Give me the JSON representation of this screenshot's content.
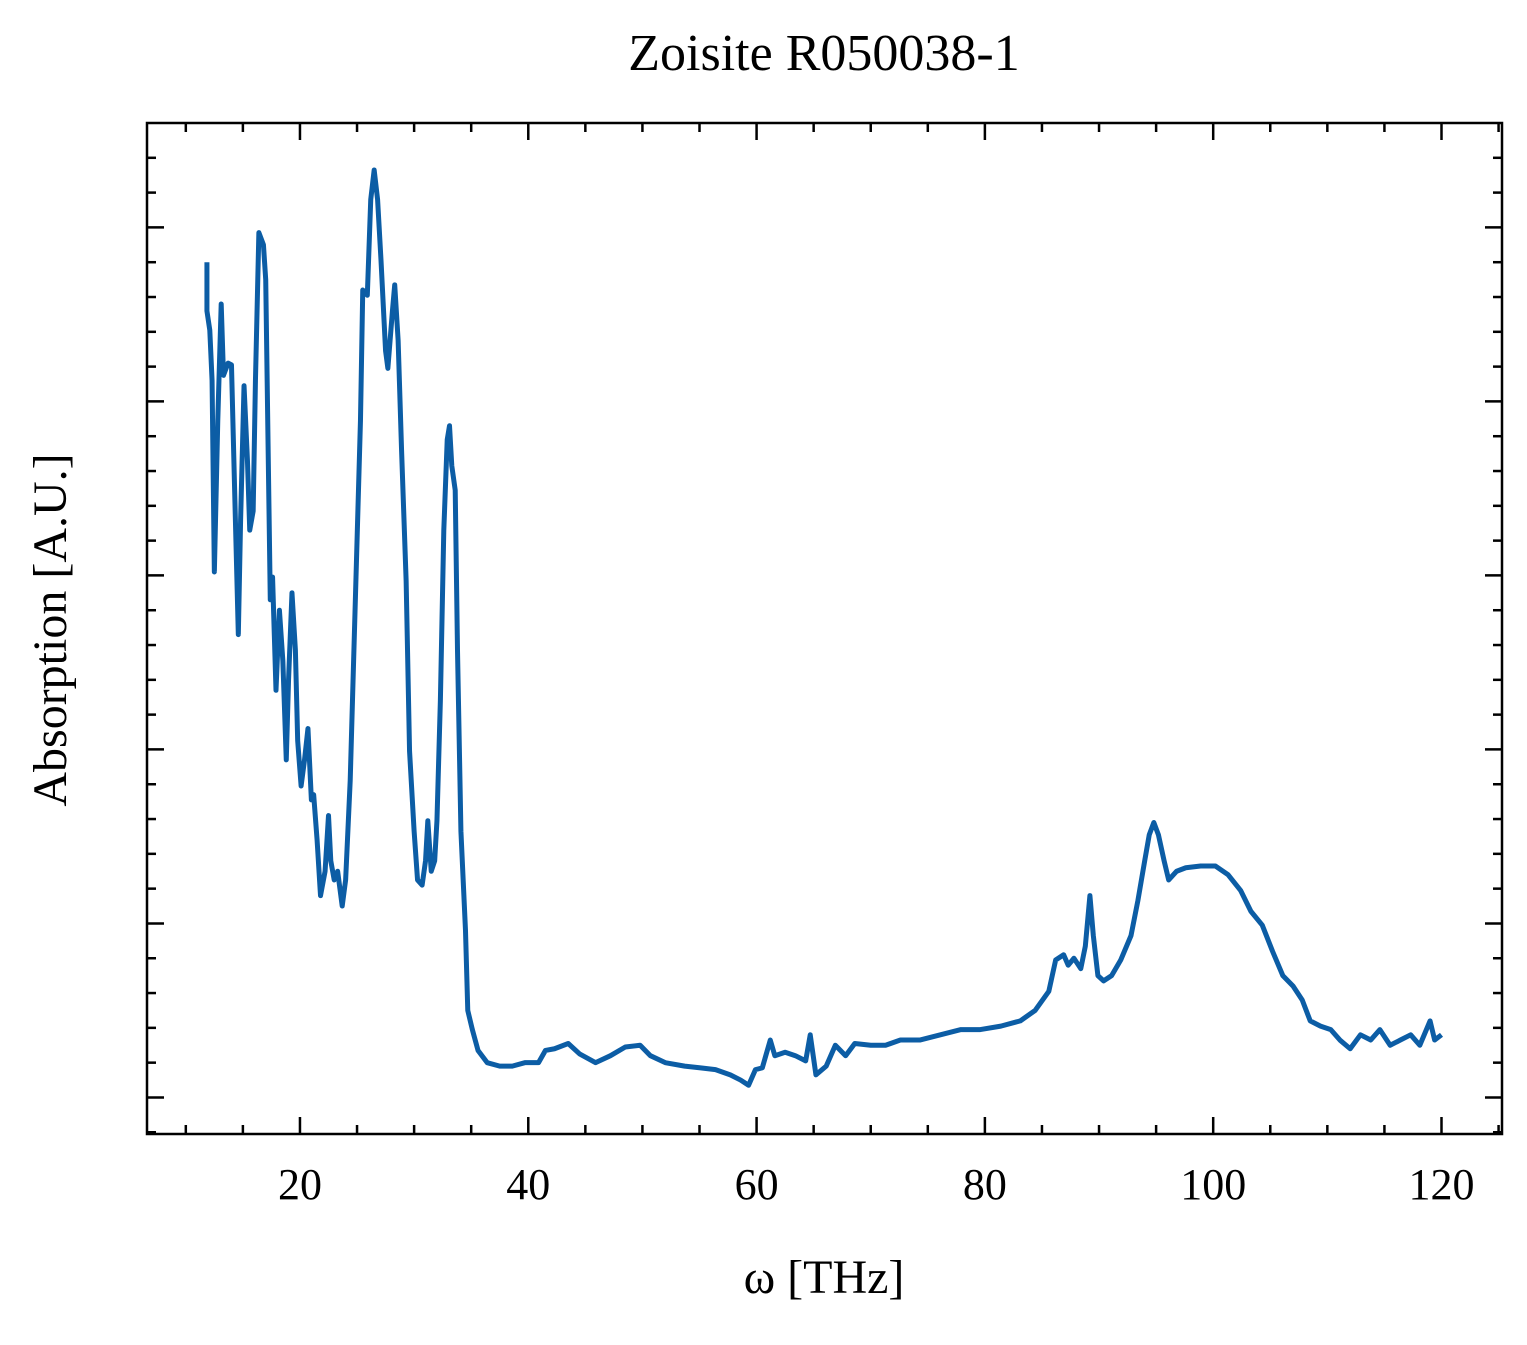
{
  "chart_data": {
    "type": "line",
    "title": "Zoisite R050038-1",
    "xlabel": "ω [THz]",
    "ylabel": "Absorption [A.U.]",
    "xlim": [
      6.6,
      125.3
    ],
    "xticks": [
      20,
      40,
      60,
      80,
      100,
      120
    ],
    "ylim": [
      -0.21,
      5.6
    ],
    "yticks": [
      0,
      1,
      2,
      3,
      4,
      5
    ],
    "series": [
      {
        "color": "#0c5da5",
        "x": [
          11.85,
          11.85,
          12.1,
          12.3,
          12.5,
          12.8,
          13.1,
          13.3,
          13.7,
          14.0,
          14.3,
          14.6,
          14.8,
          15.1,
          15.4,
          15.6,
          15.9,
          16.1,
          16.4,
          16.8,
          17.0,
          17.4,
          17.6,
          17.9,
          18.2,
          18.5,
          18.8,
          19.0,
          19.3,
          19.6,
          19.8,
          20.1,
          20.4,
          20.7,
          21.0,
          21.2,
          21.5,
          21.8,
          22.2,
          22.5,
          22.7,
          23.0,
          23.3,
          23.7,
          24.0,
          24.4,
          24.8,
          25.3,
          25.5,
          25.9,
          26.2,
          26.5,
          26.8,
          27.1,
          27.5,
          27.7,
          28.1,
          28.3,
          28.6,
          28.9,
          29.3,
          29.6,
          30.0,
          30.3,
          30.7,
          31.0,
          31.2,
          31.5,
          31.8,
          32.0,
          32.3,
          32.6,
          32.9,
          33.1,
          33.3,
          33.6,
          33.8,
          34.1,
          34.5,
          34.7,
          35.1,
          35.6,
          36.4,
          37.5,
          38.6,
          39.7,
          40.9,
          41.5,
          42.3,
          43.5,
          44.5,
          45.9,
          47.2,
          48.5,
          49.8,
          50.7,
          52.0,
          53.7,
          55.1,
          56.4,
          57.7,
          58.6,
          59.3,
          59.9,
          60.5,
          61.2,
          61.6,
          62.5,
          63.4,
          64.3,
          64.7,
          65.2,
          66.1,
          66.9,
          67.8,
          68.6,
          70.0,
          71.3,
          72.6,
          74.3,
          76.1,
          77.9,
          79.6,
          81.4,
          83.1,
          84.4,
          85.6,
          86.2,
          86.9,
          87.3,
          87.8,
          88.4,
          88.8,
          89.2,
          89.5,
          89.9,
          90.4,
          91.1,
          91.9,
          92.8,
          93.4,
          94.0,
          94.4,
          94.8,
          95.2,
          95.7,
          96.1,
          96.8,
          97.6,
          98.9,
          100.2,
          101.3,
          102.4,
          103.3,
          104.3,
          105.2,
          106.1,
          107.0,
          107.8,
          108.5,
          109.4,
          110.3,
          111.1,
          112.0,
          112.9,
          113.8,
          114.6,
          115.5,
          116.4,
          117.3,
          118.1,
          119.0,
          119.4,
          120.0
        ],
        "values": [
          4.8,
          4.52,
          4.41,
          4.12,
          3.02,
          3.89,
          4.56,
          4.15,
          4.22,
          4.21,
          3.43,
          2.66,
          3.32,
          4.09,
          3.66,
          3.26,
          3.37,
          4.12,
          4.97,
          4.9,
          4.7,
          2.86,
          2.99,
          2.34,
          2.8,
          2.51,
          1.94,
          2.4,
          2.9,
          2.57,
          2.05,
          1.79,
          1.94,
          2.12,
          1.71,
          1.74,
          1.48,
          1.16,
          1.3,
          1.62,
          1.36,
          1.25,
          1.3,
          1.1,
          1.25,
          1.82,
          2.74,
          3.89,
          4.64,
          4.61,
          5.16,
          5.33,
          5.16,
          4.81,
          4.29,
          4.19,
          4.52,
          4.67,
          4.35,
          3.72,
          2.97,
          1.99,
          1.53,
          1.25,
          1.22,
          1.36,
          1.59,
          1.3,
          1.36,
          1.59,
          2.28,
          3.26,
          3.78,
          3.86,
          3.63,
          3.49,
          2.57,
          1.53,
          0.96,
          0.5,
          0.39,
          0.27,
          0.2,
          0.18,
          0.18,
          0.2,
          0.2,
          0.27,
          0.28,
          0.31,
          0.25,
          0.2,
          0.24,
          0.29,
          0.3,
          0.24,
          0.2,
          0.18,
          0.17,
          0.16,
          0.13,
          0.1,
          0.07,
          0.16,
          0.17,
          0.33,
          0.24,
          0.26,
          0.24,
          0.21,
          0.36,
          0.13,
          0.18,
          0.3,
          0.24,
          0.31,
          0.3,
          0.3,
          0.33,
          0.33,
          0.36,
          0.39,
          0.39,
          0.41,
          0.44,
          0.5,
          0.61,
          0.79,
          0.82,
          0.76,
          0.8,
          0.74,
          0.87,
          1.16,
          0.93,
          0.7,
          0.67,
          0.7,
          0.79,
          0.93,
          1.13,
          1.36,
          1.51,
          1.58,
          1.51,
          1.36,
          1.25,
          1.3,
          1.32,
          1.33,
          1.33,
          1.28,
          1.19,
          1.07,
          0.99,
          0.84,
          0.7,
          0.64,
          0.56,
          0.44,
          0.41,
          0.39,
          0.33,
          0.28,
          0.36,
          0.33,
          0.39,
          0.3,
          0.33,
          0.36,
          0.3,
          0.44,
          0.33,
          0.36
        ]
      }
    ]
  }
}
